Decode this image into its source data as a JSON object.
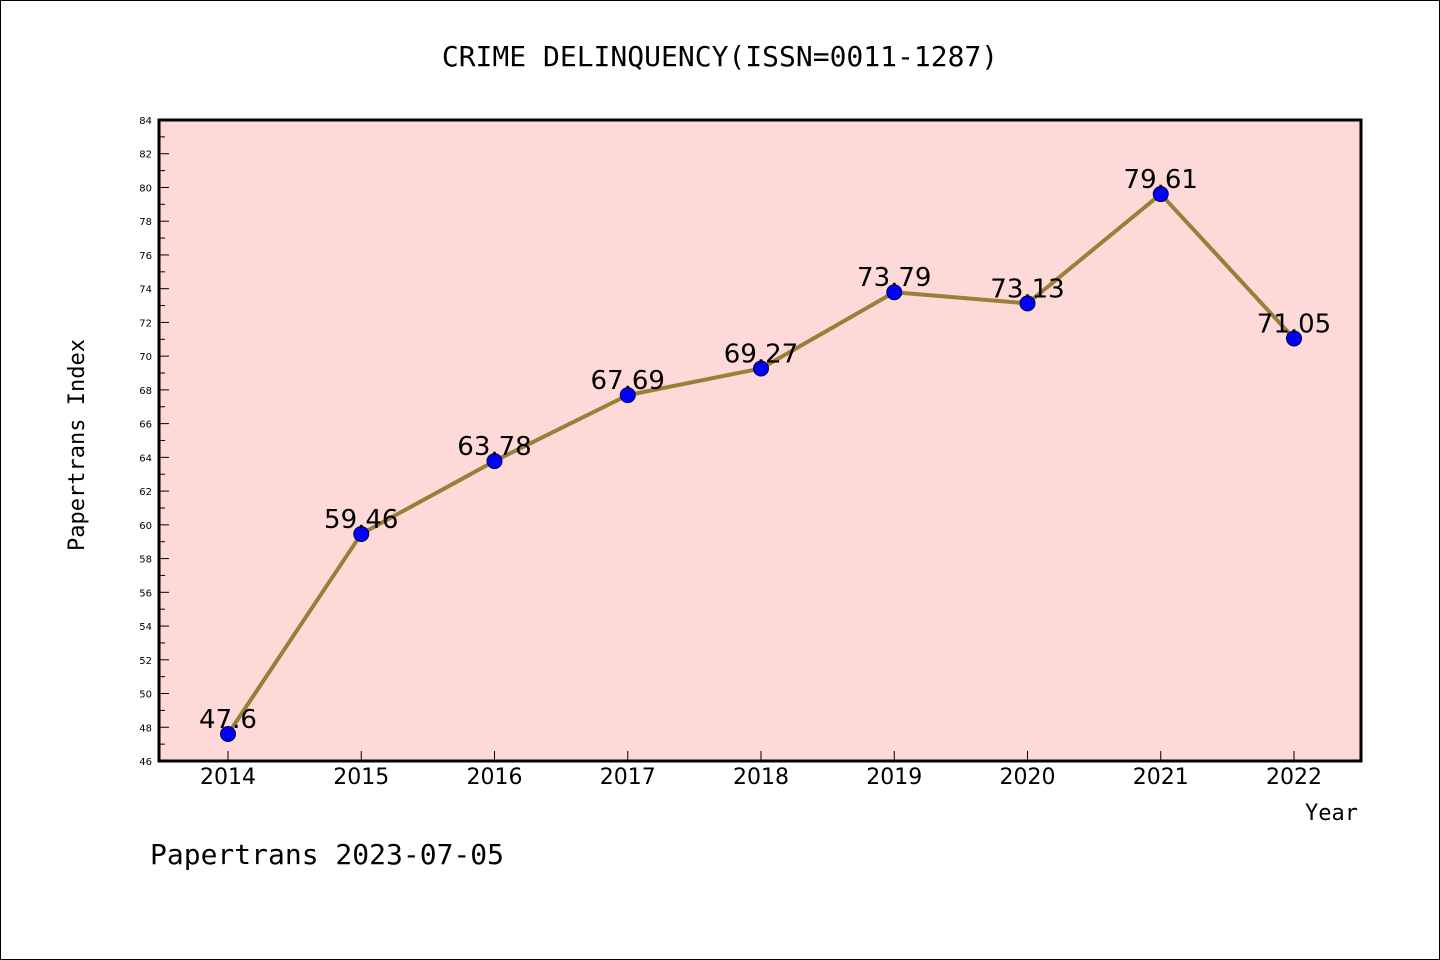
{
  "chart_data": {
    "type": "line",
    "title": "CRIME DELINQUENCY(ISSN=0011-1287)",
    "xlabel": "Year",
    "ylabel": "Papertrans Index",
    "categories": [
      "2014",
      "2015",
      "2016",
      "2017",
      "2018",
      "2019",
      "2020",
      "2021",
      "2022"
    ],
    "series": [
      {
        "values": [
          47.6,
          59.46,
          63.78,
          67.69,
          69.27,
          73.79,
          73.13,
          79.61,
          71.05
        ],
        "labels": [
          "47.6",
          "59.46",
          "63.78",
          "67.69",
          "69.27",
          "73.79",
          "73.13",
          "79.61",
          "71.05"
        ]
      }
    ],
    "ylim": [
      46,
      84
    ],
    "yticks": [
      "46",
      "48",
      "50",
      "52",
      "54",
      "56",
      "58",
      "60",
      "62",
      "64",
      "66",
      "68",
      "70",
      "72",
      "74",
      "76",
      "78",
      "80",
      "82",
      "84"
    ],
    "grid": false,
    "legend": "none",
    "colors": {
      "plot_background": "#fdd9d7",
      "line": "#9a7f3a",
      "marker": "#0000ff"
    }
  },
  "footer": "Papertrans 2023-07-05"
}
